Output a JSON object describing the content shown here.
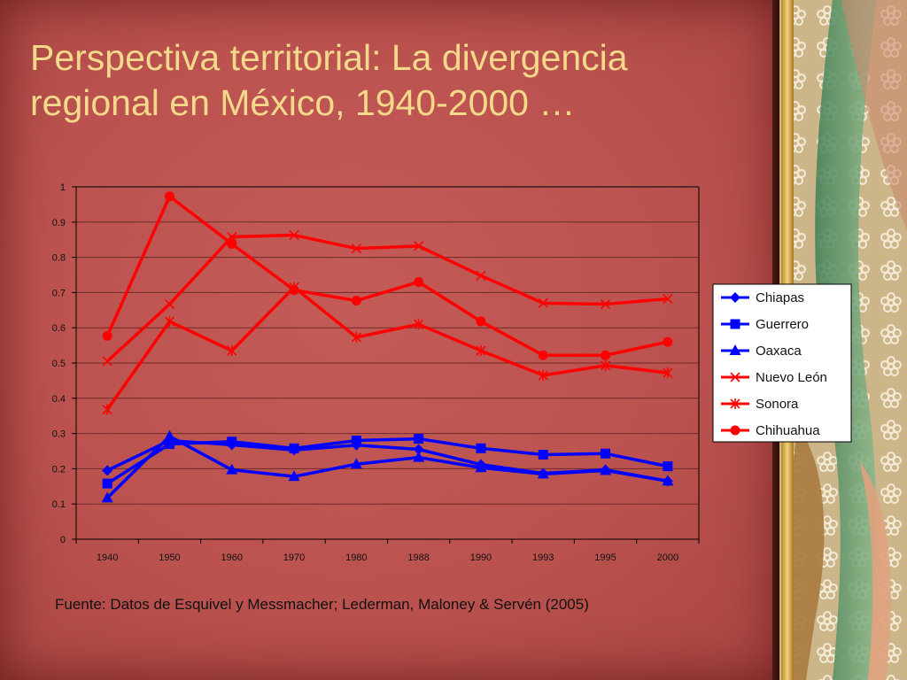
{
  "slide": {
    "title": "Perspectiva territorial: La divergencia regional en México, 1940-2000 …",
    "source": "Fuente: Datos de Esquivel y Messmacher; Lederman, Maloney & Servén (2005)"
  },
  "colors": {
    "blue": "#0000ff",
    "red": "#ff0000",
    "title": "#f4d98a",
    "background": "#c0504d"
  },
  "chart_data": {
    "type": "line",
    "title": "",
    "xlabel": "",
    "ylabel": "",
    "categories": [
      "1940",
      "1950",
      "1960",
      "1970",
      "1980",
      "1988",
      "1990",
      "1993",
      "1995",
      "2000"
    ],
    "y_ticks": [
      "0",
      "0.1",
      "0.2",
      "0.3",
      "0.4",
      "0.5",
      "0.6",
      "0.7",
      "0.8",
      "0.9",
      "1"
    ],
    "ylim": [
      0,
      1
    ],
    "grid": true,
    "legend_position": "right",
    "series": [
      {
        "name": "Chiapas",
        "color": "#0000ff",
        "marker": "diamond",
        "values": [
          0.195,
          0.28,
          0.268,
          0.253,
          0.267,
          0.255,
          0.212,
          0.187,
          0.197,
          0.165
        ]
      },
      {
        "name": "Guerrero",
        "color": "#0000ff",
        "marker": "square",
        "values": [
          0.158,
          0.27,
          0.277,
          0.258,
          0.28,
          0.285,
          0.258,
          0.24,
          0.243,
          0.207
        ]
      },
      {
        "name": "Oaxaca",
        "color": "#0000ff",
        "marker": "triangle",
        "values": [
          0.117,
          0.292,
          0.197,
          0.178,
          0.213,
          0.232,
          0.203,
          0.185,
          0.195,
          0.165
        ]
      },
      {
        "name": "Nuevo León",
        "color": "#ff0000",
        "marker": "x",
        "values": [
          0.505,
          0.667,
          0.858,
          0.863,
          0.825,
          0.832,
          0.748,
          0.67,
          0.667,
          0.682
        ]
      },
      {
        "name": "Sonora",
        "color": "#ff0000",
        "marker": "star",
        "values": [
          0.368,
          0.618,
          0.535,
          0.715,
          0.573,
          0.61,
          0.535,
          0.465,
          0.493,
          0.472
        ]
      },
      {
        "name": "Chihuahua",
        "color": "#ff0000",
        "marker": "circle",
        "values": [
          0.577,
          0.973,
          0.838,
          0.707,
          0.677,
          0.73,
          0.618,
          0.522,
          0.522,
          0.56
        ]
      }
    ]
  }
}
